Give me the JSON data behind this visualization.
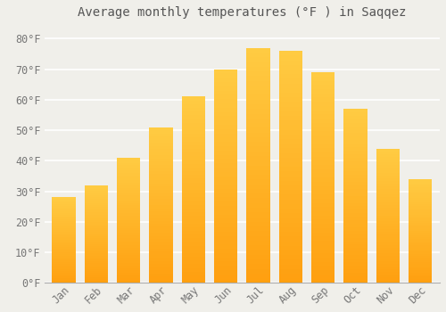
{
  "title": "Average monthly temperatures (°F ) in Saqqez",
  "months": [
    "Jan",
    "Feb",
    "Mar",
    "Apr",
    "May",
    "Jun",
    "Jul",
    "Aug",
    "Sep",
    "Oct",
    "Nov",
    "Dec"
  ],
  "values": [
    28,
    32,
    41,
    51,
    61,
    70,
    77,
    76,
    69,
    57,
    44,
    34
  ],
  "bar_color_top": "#FFCC44",
  "bar_color_bottom": "#FFA010",
  "background_color": "#F0EFEA",
  "plot_bg_color": "#F0EFEA",
  "grid_color": "#FFFFFF",
  "text_color": "#777777",
  "title_color": "#555555",
  "yticks": [
    0,
    10,
    20,
    30,
    40,
    50,
    60,
    70,
    80
  ],
  "ylim": [
    0,
    85
  ],
  "title_fontsize": 10,
  "tick_fontsize": 8.5,
  "font_family": "monospace"
}
